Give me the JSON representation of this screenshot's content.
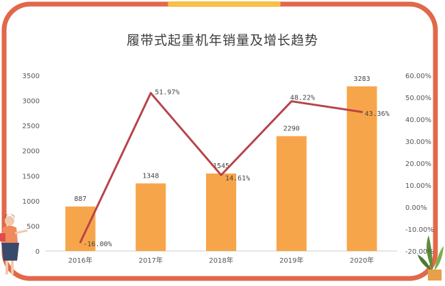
{
  "title": "履带式起重机年销量及增长趋势",
  "colors": {
    "border": "#e0694a",
    "top_tab": "#f7c04a",
    "bar": "#f7a54a",
    "line": "#b7444a",
    "grid": "#e2e2e2"
  },
  "chart_data": {
    "type": "bar",
    "title": "履带式起重机年销量及增长趋势",
    "categories": [
      "2016年",
      "2017年",
      "2018年",
      "2019年",
      "2020年"
    ],
    "series": [
      {
        "type": "bar",
        "axis": "left",
        "values": [
          887,
          1348,
          1545,
          2290,
          3283
        ],
        "labels": [
          "887",
          "1348",
          "1545",
          "2290",
          "3283"
        ]
      },
      {
        "type": "line",
        "axis": "right",
        "values": [
          -16.0,
          51.97,
          14.61,
          48.22,
          43.36
        ],
        "labels": [
          "-16.00%",
          "51.97%",
          "14.61%",
          "48.22%",
          "43.36%"
        ]
      }
    ],
    "left_axis": {
      "ylim": [
        0,
        3500
      ],
      "ticks": [
        "0",
        "500",
        "1000",
        "1500",
        "2000",
        "2500",
        "3000",
        "3500"
      ]
    },
    "right_axis": {
      "ylim": [
        -20,
        60
      ],
      "ticks": [
        "-20.00%",
        "-10.00%",
        "0.00%",
        "10.00%",
        "20.00%",
        "30.00%",
        "40.00%",
        "50.00%",
        "60.00%"
      ]
    },
    "grid": false,
    "legend": "none"
  }
}
